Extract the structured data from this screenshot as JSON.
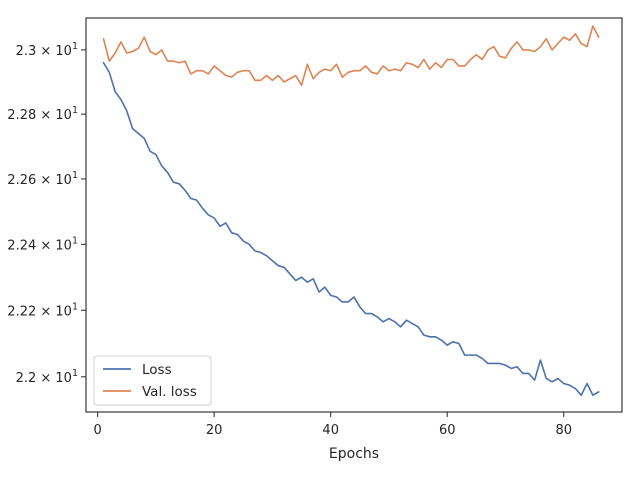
{
  "chart_data": {
    "type": "line",
    "title": "",
    "xlabel": "Epochs",
    "ylabel": "",
    "yscale": "log",
    "grid": false,
    "legend_placement": "lower-left",
    "xlim": [
      -2,
      90
    ],
    "ylim": [
      21.895,
      23.1
    ],
    "x_ticks": [
      0,
      20,
      40,
      60,
      80
    ],
    "x_tick_labels": [
      "0",
      "20",
      "40",
      "60",
      "80"
    ],
    "y_ticks": [
      22.0,
      22.2,
      22.4,
      22.6,
      22.8,
      23.0
    ],
    "y_tick_labels": [
      {
        "mantissa": "2.2",
        "exponent": "1"
      },
      {
        "mantissa": "2.22",
        "exponent": "1"
      },
      {
        "mantissa": "2.24",
        "exponent": "1"
      },
      {
        "mantissa": "2.26",
        "exponent": "1"
      },
      {
        "mantissa": "2.28",
        "exponent": "1"
      },
      {
        "mantissa": "2.3",
        "exponent": "1"
      }
    ],
    "x_tick_times_sign": "×",
    "y_tick_base": "10",
    "x": [
      1,
      2,
      3,
      4,
      5,
      6,
      7,
      8,
      9,
      10,
      11,
      12,
      13,
      14,
      15,
      16,
      17,
      18,
      19,
      20,
      21,
      22,
      23,
      24,
      25,
      26,
      27,
      28,
      29,
      30,
      31,
      32,
      33,
      34,
      35,
      36,
      37,
      38,
      39,
      40,
      41,
      42,
      43,
      44,
      45,
      46,
      47,
      48,
      49,
      50,
      51,
      52,
      53,
      54,
      55,
      56,
      57,
      58,
      59,
      60,
      61,
      62,
      63,
      64,
      65,
      66,
      67,
      68,
      69,
      70,
      71,
      72,
      73,
      74,
      75,
      76,
      77,
      78,
      79,
      80,
      81,
      82,
      83,
      84,
      85,
      86
    ],
    "series": [
      {
        "name": "Loss",
        "color": "#4c72b0",
        "values": [
          22.96,
          22.93,
          22.87,
          22.845,
          22.81,
          22.755,
          22.74,
          22.725,
          22.685,
          22.675,
          22.64,
          22.62,
          22.59,
          22.585,
          22.565,
          22.54,
          22.535,
          22.51,
          22.49,
          22.48,
          22.455,
          22.465,
          22.435,
          22.43,
          22.41,
          22.4,
          22.38,
          22.375,
          22.365,
          22.35,
          22.335,
          22.33,
          22.31,
          22.29,
          22.3,
          22.285,
          22.295,
          22.255,
          22.27,
          22.245,
          22.24,
          22.225,
          22.225,
          22.24,
          22.21,
          22.19,
          22.19,
          22.18,
          22.165,
          22.175,
          22.165,
          22.15,
          22.17,
          22.16,
          22.15,
          22.125,
          22.12,
          22.12,
          22.11,
          22.095,
          22.105,
          22.1,
          22.065,
          22.065,
          22.065,
          22.055,
          22.04,
          22.04,
          22.04,
          22.035,
          22.025,
          22.03,
          22.01,
          22.01,
          21.99,
          22.05,
          21.995,
          21.985,
          21.995,
          21.98,
          21.975,
          21.965,
          21.945,
          21.98,
          21.945,
          21.955
        ]
      },
      {
        "name": "Val. loss",
        "color": "#dd8452",
        "values": [
          23.035,
          22.965,
          22.99,
          23.025,
          22.99,
          22.995,
          23.005,
          23.04,
          22.995,
          22.985,
          23.0,
          22.965,
          22.965,
          22.96,
          22.965,
          22.925,
          22.935,
          22.935,
          22.925,
          22.95,
          22.935,
          22.92,
          22.915,
          22.93,
          22.935,
          22.935,
          22.905,
          22.905,
          22.92,
          22.905,
          22.92,
          22.9,
          22.91,
          22.92,
          22.89,
          22.955,
          22.91,
          22.93,
          22.94,
          22.935,
          22.955,
          22.915,
          22.93,
          22.935,
          22.935,
          22.95,
          22.93,
          22.925,
          22.95,
          22.935,
          22.94,
          22.935,
          22.96,
          22.955,
          22.945,
          22.97,
          22.94,
          22.96,
          22.945,
          22.97,
          22.97,
          22.95,
          22.95,
          22.97,
          22.985,
          22.97,
          23.0,
          23.01,
          22.98,
          22.975,
          23.005,
          23.025,
          23.0,
          23.0,
          22.995,
          23.01,
          23.035,
          23.0,
          23.02,
          23.04,
          23.03,
          23.05,
          23.02,
          23.01,
          23.075,
          23.04
        ]
      }
    ]
  }
}
